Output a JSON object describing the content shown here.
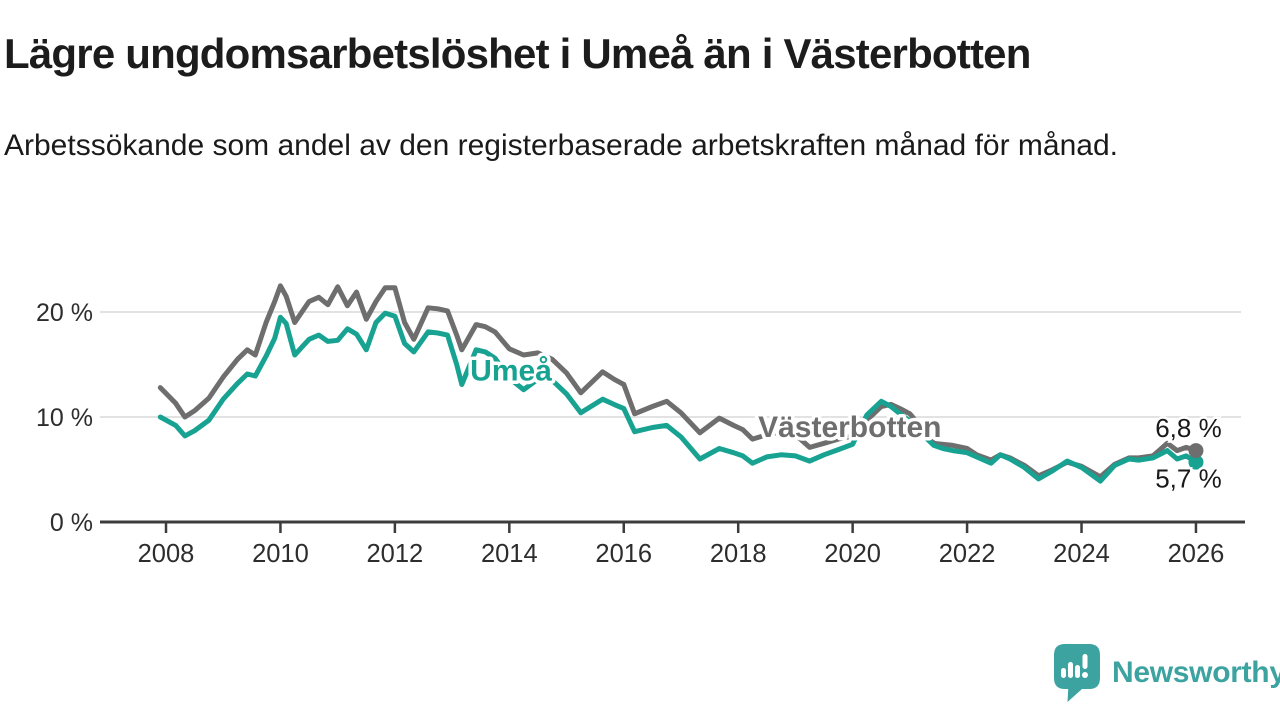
{
  "header": {
    "title": "Lägre ungdomsarbetslöshet i Umeå än i Västerbotten",
    "subtitle": "Arbetssökande som andel av den registerbaserade arbetskraften månad för månad."
  },
  "footer": {
    "brand": "Newsworthy",
    "logo_color": "#3da3a0"
  },
  "colors": {
    "umea_teal": "#17a292",
    "vasterbotten_gray": "#6e6e6e",
    "axis": "#3c3c3c",
    "grid": "#d9d9d9",
    "tick_label": "#2d2d2d",
    "annotation_text": "#1a1a1a",
    "halo": "#ffffff"
  },
  "chart_data": {
    "type": "line",
    "title": "Lägre ungdomsarbetslöshet i Umeå än i Västerbotten",
    "subtitle": "Arbetssökande som andel av den registerbaserade arbetskraften månad för månad.",
    "xlabel": "",
    "ylabel": "",
    "x_unit": "decimal_year",
    "y_unit": "percent",
    "xlim": [
      2006.85,
      2026.9
    ],
    "ylim": [
      0,
      23.5
    ],
    "grid": "horizontal",
    "legend_position": "inline-labels",
    "x_ticks": [
      2008,
      2010,
      2012,
      2014,
      2016,
      2018,
      2020,
      2022,
      2024,
      2026
    ],
    "y_ticks": [
      {
        "value": 20,
        "label": "20 %"
      },
      {
        "value": 10,
        "label": "10 %"
      },
      {
        "value": 0,
        "label": "0 %"
      }
    ],
    "x": [
      2007.9,
      2008.17,
      2008.33,
      2008.5,
      2008.75,
      2009.0,
      2009.25,
      2009.42,
      2009.56,
      2009.75,
      2009.9,
      2010.0,
      2010.1,
      2010.25,
      2010.4,
      2010.5,
      2010.67,
      2010.83,
      2011.0,
      2011.17,
      2011.33,
      2011.5,
      2011.67,
      2011.83,
      2012.0,
      2012.17,
      2012.33,
      2012.58,
      2012.75,
      2012.92,
      2013.08,
      2013.17,
      2013.42,
      2013.58,
      2013.75,
      2014.0,
      2014.25,
      2014.5,
      2014.75,
      2015.0,
      2015.25,
      2015.63,
      2015.83,
      2016.0,
      2016.19,
      2016.5,
      2016.75,
      2017.0,
      2017.33,
      2017.67,
      2017.92,
      2018.08,
      2018.25,
      2018.5,
      2018.75,
      2019.0,
      2019.25,
      2019.5,
      2019.75,
      2020.0,
      2020.25,
      2020.5,
      2020.67,
      2020.83,
      2021.0,
      2021.17,
      2021.42,
      2021.58,
      2021.75,
      2022.0,
      2022.17,
      2022.42,
      2022.58,
      2022.75,
      2023.0,
      2023.25,
      2023.5,
      2023.75,
      2024.0,
      2024.33,
      2024.58,
      2024.83,
      2025.0,
      2025.25,
      2025.5,
      2025.67,
      2025.83,
      2026.0
    ],
    "series": [
      {
        "name": "Västerbotten",
        "color": "#6e6e6e",
        "stroke_width": 5,
        "end_dot": true,
        "values": [
          12.8,
          11.3,
          10.0,
          10.6,
          11.8,
          13.8,
          15.5,
          16.4,
          15.9,
          19.0,
          21.0,
          22.5,
          21.5,
          19.0,
          20.2,
          21.0,
          21.4,
          20.7,
          22.4,
          20.6,
          21.9,
          19.3,
          21.0,
          22.3,
          22.3,
          19.0,
          17.4,
          20.4,
          20.3,
          20.1,
          17.8,
          16.4,
          18.8,
          18.6,
          18.1,
          16.5,
          15.9,
          16.1,
          15.5,
          14.2,
          12.3,
          14.3,
          13.6,
          13.1,
          10.3,
          11.0,
          11.5,
          10.4,
          8.5,
          9.9,
          9.2,
          8.8,
          7.9,
          8.3,
          8.6,
          8.3,
          7.1,
          7.5,
          7.9,
          8.2,
          9.7,
          11.0,
          11.2,
          10.8,
          10.3,
          9.2,
          7.5,
          7.4,
          7.3,
          7.0,
          6.4,
          5.9,
          6.4,
          6.1,
          5.4,
          4.4,
          5.0,
          5.7,
          5.3,
          4.3,
          5.5,
          6.1,
          6.1,
          6.3,
          7.5,
          6.8,
          7.1,
          6.8
        ]
      },
      {
        "name": "Umeå",
        "color": "#17a292",
        "stroke_width": 5,
        "end_dot": true,
        "values": [
          10.0,
          9.2,
          8.2,
          8.7,
          9.7,
          11.7,
          13.2,
          14.1,
          13.9,
          15.8,
          17.5,
          19.5,
          18.9,
          15.9,
          16.8,
          17.4,
          17.8,
          17.2,
          17.3,
          18.4,
          17.9,
          16.4,
          19.0,
          19.9,
          19.6,
          17.0,
          16.2,
          18.1,
          18.0,
          17.8,
          15.0,
          13.1,
          16.4,
          16.2,
          15.6,
          13.7,
          12.6,
          13.6,
          13.5,
          12.2,
          10.4,
          11.7,
          11.2,
          10.8,
          8.6,
          9.0,
          9.2,
          8.1,
          6.0,
          7.0,
          6.6,
          6.3,
          5.6,
          6.2,
          6.4,
          6.3,
          5.8,
          6.4,
          6.9,
          7.4,
          10.2,
          11.5,
          11.0,
          10.3,
          9.6,
          8.6,
          7.3,
          7.0,
          6.8,
          6.6,
          6.2,
          5.6,
          6.4,
          6.0,
          5.2,
          4.1,
          4.9,
          5.8,
          5.2,
          3.9,
          5.4,
          6.0,
          5.9,
          6.1,
          6.8,
          6.0,
          6.3,
          5.7
        ]
      }
    ],
    "series_labels": [
      {
        "text": "Umeå",
        "x": 2014.03,
        "y": 13.5,
        "color": "#17a292",
        "anchor": "middle"
      },
      {
        "text": "Västerbotten",
        "x": 2019.95,
        "y": 8.1,
        "color": "#6e6e6e",
        "anchor": "middle"
      }
    ],
    "annotations": [
      {
        "text": "6,8 %",
        "x": 2026.45,
        "y": 8.1,
        "color": "#1a1a1a",
        "anchor": "end"
      },
      {
        "text": "5,7 %",
        "x": 2026.45,
        "y": 3.3,
        "color": "#1a1a1a",
        "anchor": "end"
      }
    ]
  }
}
